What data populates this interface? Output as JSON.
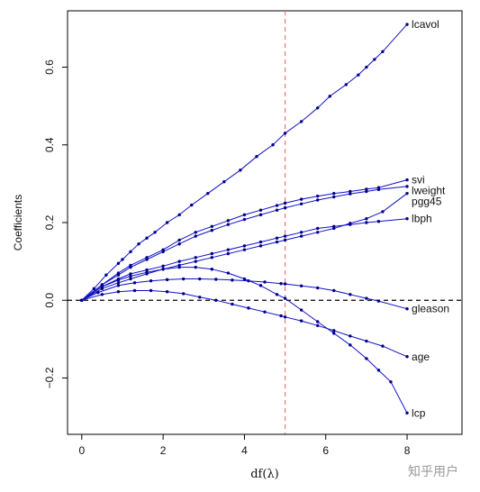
{
  "watermark": "知乎用户",
  "chart_data": {
    "type": "line",
    "xlabel": "df(λ)",
    "ylabel": "Coefficients",
    "xlim": [
      -0.35,
      9.35
    ],
    "ylim": [
      -0.345,
      0.745
    ],
    "xticks": [
      0,
      2,
      4,
      6,
      8
    ],
    "yticks": [
      -0.2,
      0.0,
      0.2,
      0.4,
      0.6
    ],
    "ytick_labels": [
      "−0.2",
      "0.0",
      "0.2",
      "0.4",
      "0.6"
    ],
    "grid": false,
    "line_color": "#1010c8",
    "point_color": "#00008b",
    "reference_lines": [
      {
        "axis": "x",
        "value": 5,
        "color": "#e8787a",
        "style": "dashed"
      },
      {
        "axis": "y",
        "value": 0,
        "color": "#000000",
        "style": "dashed"
      }
    ],
    "series": [
      {
        "name": "lcavol",
        "x": [
          0,
          0.3,
          0.6,
          0.9,
          1.0,
          1.2,
          1.4,
          1.6,
          1.8,
          2.1,
          2.4,
          2.7,
          3.1,
          3.5,
          3.9,
          4.3,
          4.7,
          5.0,
          5.4,
          5.8,
          6.1,
          6.5,
          6.8,
          7.0,
          7.2,
          7.4,
          8.0
        ],
        "y": [
          0,
          0.03,
          0.065,
          0.095,
          0.105,
          0.125,
          0.145,
          0.16,
          0.175,
          0.2,
          0.22,
          0.245,
          0.275,
          0.305,
          0.335,
          0.37,
          0.4,
          0.43,
          0.46,
          0.495,
          0.525,
          0.555,
          0.58,
          0.6,
          0.62,
          0.64,
          0.71
        ]
      },
      {
        "name": "svi",
        "x": [
          0,
          0.5,
          0.9,
          1.2,
          1.6,
          2.0,
          2.4,
          2.8,
          3.2,
          3.6,
          4.0,
          4.4,
          4.8,
          5.0,
          5.4,
          5.8,
          6.2,
          6.6,
          7.0,
          7.3,
          8.0
        ],
        "y": [
          0,
          0.04,
          0.07,
          0.09,
          0.11,
          0.13,
          0.155,
          0.175,
          0.19,
          0.205,
          0.22,
          0.232,
          0.244,
          0.25,
          0.26,
          0.268,
          0.275,
          0.28,
          0.286,
          0.29,
          0.31
        ]
      },
      {
        "name": "lweight",
        "x": [
          0,
          0.5,
          0.9,
          1.2,
          1.6,
          2.0,
          2.4,
          2.8,
          3.2,
          3.6,
          4.0,
          4.4,
          4.8,
          5.0,
          5.4,
          5.8,
          6.2,
          6.6,
          7.0,
          7.3,
          8.0
        ],
        "y": [
          0,
          0.04,
          0.065,
          0.085,
          0.105,
          0.125,
          0.145,
          0.165,
          0.18,
          0.195,
          0.208,
          0.22,
          0.232,
          0.238,
          0.248,
          0.258,
          0.266,
          0.274,
          0.28,
          0.285,
          0.293
        ]
      },
      {
        "name": "pgg45",
        "x": [
          0,
          0.5,
          0.9,
          1.2,
          1.6,
          2.0,
          2.4,
          2.8,
          3.2,
          3.6,
          4.0,
          4.4,
          4.8,
          5.0,
          5.4,
          5.8,
          6.2,
          6.6,
          7.0,
          7.4,
          8.0
        ],
        "y": [
          0,
          0.03,
          0.045,
          0.055,
          0.068,
          0.08,
          0.09,
          0.1,
          0.11,
          0.12,
          0.13,
          0.14,
          0.15,
          0.155,
          0.165,
          0.175,
          0.185,
          0.198,
          0.21,
          0.228,
          0.275
        ]
      },
      {
        "name": "lbph",
        "x": [
          0,
          0.5,
          0.9,
          1.2,
          1.6,
          2.0,
          2.4,
          2.8,
          3.2,
          3.6,
          4.0,
          4.4,
          4.8,
          5.0,
          5.4,
          5.8,
          6.2,
          6.6,
          7.0,
          7.3,
          8.0
        ],
        "y": [
          0,
          0.035,
          0.055,
          0.068,
          0.078,
          0.088,
          0.1,
          0.11,
          0.12,
          0.13,
          0.14,
          0.15,
          0.16,
          0.165,
          0.175,
          0.185,
          0.19,
          0.195,
          0.2,
          0.203,
          0.21
        ]
      },
      {
        "name": "gleason",
        "x": [
          0,
          0.4,
          0.9,
          1.3,
          1.7,
          2.1,
          2.5,
          2.9,
          3.3,
          3.7,
          4.1,
          4.5,
          4.9,
          5.0,
          5.4,
          5.8,
          6.2,
          6.6,
          7.0,
          7.3,
          8.0
        ],
        "y": [
          0,
          0.02,
          0.038,
          0.045,
          0.05,
          0.053,
          0.055,
          0.055,
          0.054,
          0.052,
          0.05,
          0.047,
          0.043,
          0.042,
          0.037,
          0.032,
          0.025,
          0.015,
          0.005,
          -0.002,
          -0.022
        ]
      },
      {
        "name": "age",
        "x": [
          0,
          0.5,
          0.9,
          1.3,
          1.7,
          2.1,
          2.5,
          2.9,
          3.3,
          3.7,
          4.1,
          4.5,
          4.9,
          5.0,
          5.4,
          5.8,
          6.2,
          6.6,
          7.0,
          7.4,
          8.0
        ],
        "y": [
          0,
          0.015,
          0.022,
          0.025,
          0.025,
          0.022,
          0.017,
          0.008,
          0.0,
          -0.01,
          -0.02,
          -0.03,
          -0.04,
          -0.043,
          -0.053,
          -0.065,
          -0.078,
          -0.092,
          -0.105,
          -0.118,
          -0.145
        ]
      },
      {
        "name": "lcp",
        "x": [
          0,
          0.5,
          0.9,
          1.2,
          1.6,
          2.0,
          2.4,
          2.8,
          3.2,
          3.6,
          4.0,
          4.4,
          4.8,
          5.0,
          5.4,
          5.8,
          6.2,
          6.6,
          7.0,
          7.3,
          7.6,
          8.0
        ],
        "y": [
          0,
          0.035,
          0.052,
          0.062,
          0.072,
          0.08,
          0.085,
          0.085,
          0.08,
          0.07,
          0.055,
          0.038,
          0.015,
          0.005,
          -0.025,
          -0.055,
          -0.085,
          -0.115,
          -0.15,
          -0.18,
          -0.21,
          -0.29
        ]
      }
    ]
  }
}
